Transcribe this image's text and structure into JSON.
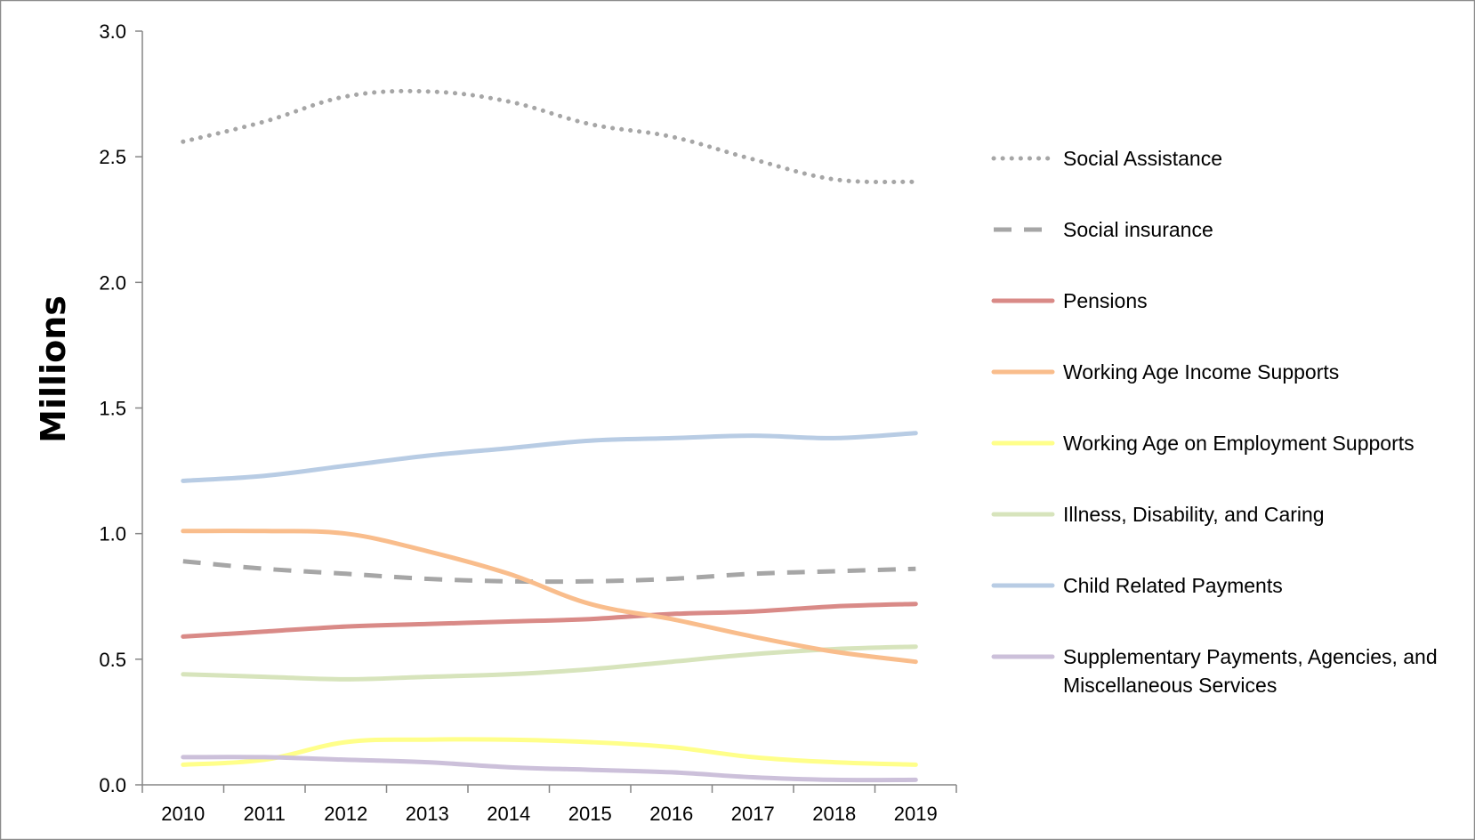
{
  "chart_data": {
    "type": "line",
    "title": "",
    "xlabel": "",
    "ylabel": "Millions",
    "ylim": [
      0,
      3
    ],
    "yticks": [
      "0.0",
      "0.5",
      "1.0",
      "1.5",
      "2.0",
      "2.5",
      "3.0"
    ],
    "categories": [
      "2010",
      "2011",
      "2012",
      "2013",
      "2014",
      "2015",
      "2016",
      "2017",
      "2018",
      "2019"
    ],
    "grid": false,
    "legend_position": "right",
    "series": [
      {
        "name": "Social Assistance",
        "color": "#a6a6a6",
        "style": "dotted",
        "values": [
          2.56,
          2.64,
          2.74,
          2.76,
          2.72,
          2.63,
          2.58,
          2.49,
          2.41,
          2.4
        ]
      },
      {
        "name": "Social insurance",
        "color": "#a6a6a6",
        "style": "dashed",
        "values": [
          0.89,
          0.86,
          0.84,
          0.82,
          0.81,
          0.81,
          0.82,
          0.84,
          0.85,
          0.86
        ]
      },
      {
        "name": "Pensions",
        "color": "#d98a87",
        "style": "solid",
        "values": [
          0.59,
          0.61,
          0.63,
          0.64,
          0.65,
          0.66,
          0.68,
          0.69,
          0.71,
          0.72
        ]
      },
      {
        "name": "Working Age Income Supports",
        "color": "#f9bd8c",
        "style": "solid",
        "values": [
          1.01,
          1.01,
          1.0,
          0.93,
          0.84,
          0.72,
          0.66,
          0.59,
          0.53,
          0.49
        ]
      },
      {
        "name": "Working Age on Employment Supports",
        "color": "#ffff8a",
        "style": "solid",
        "values": [
          0.08,
          0.1,
          0.17,
          0.18,
          0.18,
          0.17,
          0.15,
          0.11,
          0.09,
          0.08
        ]
      },
      {
        "name": "Illness, Disability, and Caring",
        "color": "#d7e4bc",
        "style": "solid",
        "values": [
          0.44,
          0.43,
          0.42,
          0.43,
          0.44,
          0.46,
          0.49,
          0.52,
          0.54,
          0.55
        ]
      },
      {
        "name": "Child Related Payments",
        "color": "#b8cce4",
        "style": "solid",
        "values": [
          1.21,
          1.23,
          1.27,
          1.31,
          1.34,
          1.37,
          1.38,
          1.39,
          1.38,
          1.4
        ]
      },
      {
        "name": "Supplementary Payments, Agencies, and Miscellaneous Services",
        "color": "#ccc0da",
        "style": "solid",
        "values": [
          0.11,
          0.11,
          0.1,
          0.09,
          0.07,
          0.06,
          0.05,
          0.03,
          0.02,
          0.02
        ]
      }
    ]
  }
}
